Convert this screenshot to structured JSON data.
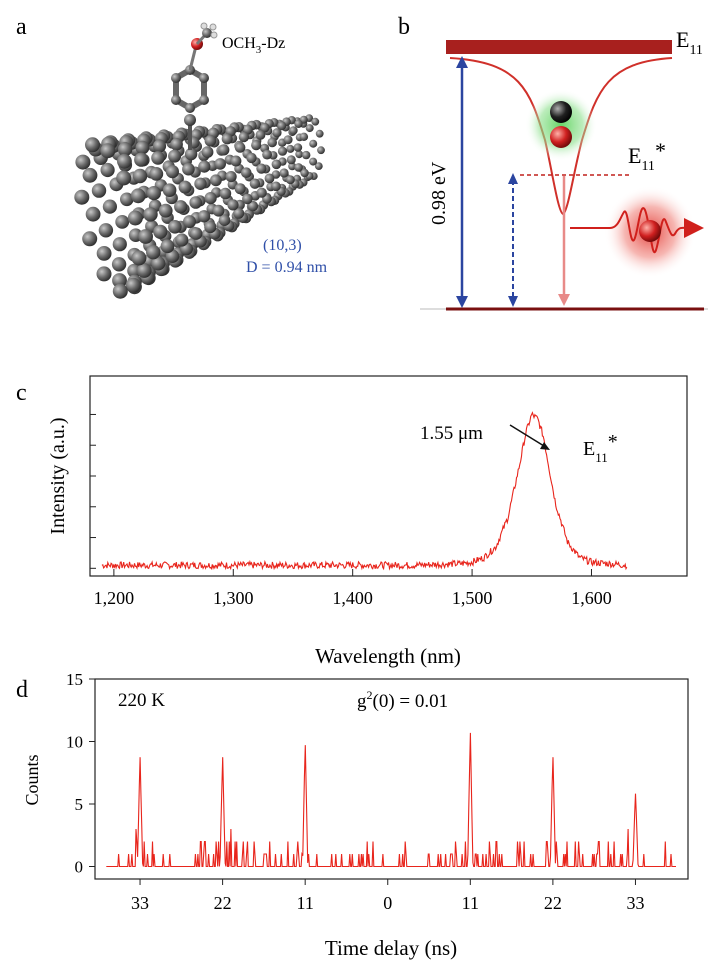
{
  "panels": {
    "a": {
      "letter": "a",
      "molecule_label": "OCH",
      "molecule_sub": "3",
      "molecule_suffix": "-Dz",
      "chirality": "(10,3)",
      "diameter": "D = 0.94 nm",
      "label_color": "#2f4fa8"
    },
    "b": {
      "letter": "b",
      "level_top_base": "E",
      "level_top_sub": "11",
      "level_defect_base": "E",
      "level_defect_sub": "11",
      "level_defect_star": "*",
      "gap_label": "0.98 eV",
      "dark_red": "#a8201e",
      "blue": "#2b45a0"
    },
    "c": {
      "letter": "c",
      "peak_annotation": "1.55 μm",
      "peak_label_base": "E",
      "peak_label_sub": "11",
      "peak_label_star": "*"
    },
    "d": {
      "letter": "d",
      "temperature": "220 K",
      "g2_base": "g",
      "g2_sup": "2",
      "g2_rest": "(0) = 0.01"
    }
  },
  "chart_data": [
    {
      "type": "line",
      "panel": "c",
      "xlabel": "Wavelength (nm)",
      "ylabel": "Intensity (a.u.)",
      "xlim": [
        1180,
        1680
      ],
      "ylim": [
        -0.05,
        1.25
      ],
      "xticks": [
        1200,
        1300,
        1400,
        1500,
        1600
      ],
      "xtick_labels": [
        "1,200",
        "1,300",
        "1,400",
        "1,500",
        "1,600"
      ],
      "y_minor_ticks": [
        0,
        0.2,
        0.4,
        0.6,
        0.8,
        1.0
      ],
      "series": [
        {
          "color": "#e8251c",
          "x": [
            1190,
            1250,
            1300,
            1350,
            1400,
            1450,
            1490,
            1500,
            1510,
            1520,
            1530,
            1540,
            1545,
            1550,
            1555,
            1560,
            1565,
            1570,
            1580,
            1590,
            1600,
            1615,
            1630
          ],
          "y": [
            0.02,
            0.02,
            0.02,
            0.02,
            0.02,
            0.02,
            0.03,
            0.04,
            0.07,
            0.14,
            0.33,
            0.68,
            0.88,
            1.0,
            0.97,
            0.85,
            0.63,
            0.42,
            0.17,
            0.07,
            0.04,
            0.03,
            0.02
          ]
        }
      ]
    },
    {
      "type": "bar",
      "panel": "d",
      "xlabel": "Time delay (ns)",
      "ylabel": "Counts",
      "xlim": [
        -39,
        40
      ],
      "ylim": [
        -1,
        15
      ],
      "yticks": [
        0,
        5,
        10,
        15
      ],
      "xticks": [
        -33,
        -22,
        -11,
        0,
        11,
        22,
        33
      ],
      "xtick_labels": [
        "33",
        "22",
        "11",
        "0",
        "11",
        "22",
        "33"
      ],
      "peaks": {
        "x": [
          -33,
          -22,
          -11,
          0,
          11,
          22,
          33
        ],
        "values": [
          9,
          9,
          10,
          0,
          11,
          9,
          6
        ]
      },
      "color": "#e8251c"
    }
  ]
}
